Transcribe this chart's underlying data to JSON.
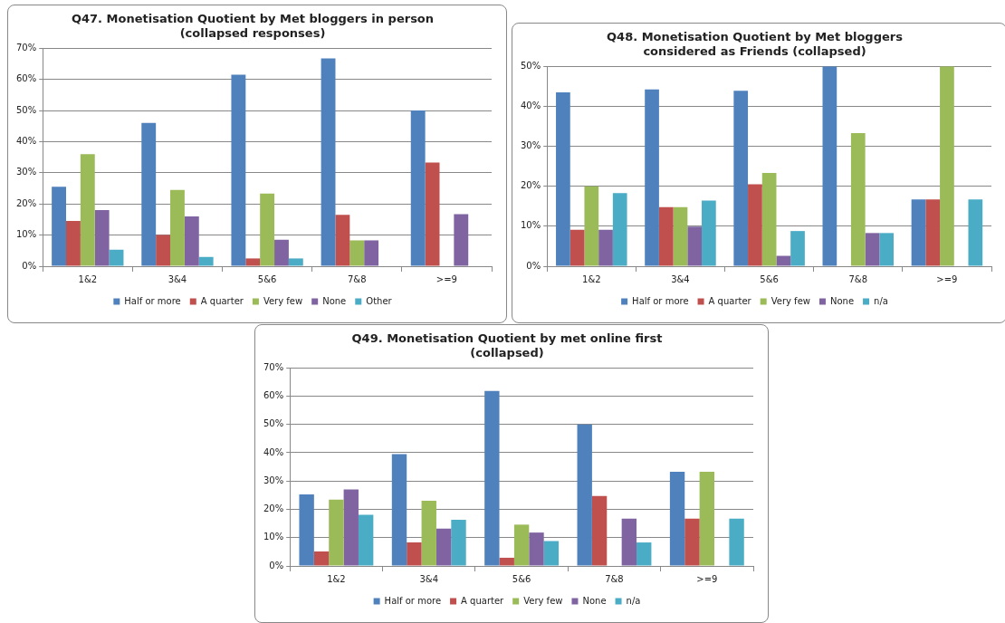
{
  "chart_data": [
    {
      "type": "bar",
      "title": "Q47. Monetisation Quotient by Met bloggers in person (collapsed responses)",
      "categories": [
        "1&2",
        "3&4",
        "5&6",
        "7&8",
        ">=9"
      ],
      "series": [
        {
          "name": "Half or more",
          "color": "#4f81bd",
          "values": [
            25.5,
            46,
            61.5,
            66.7,
            50
          ]
        },
        {
          "name": "A quarter",
          "color": "#c0504d",
          "values": [
            14.5,
            10,
            2.5,
            16.5,
            33.3
          ]
        },
        {
          "name": "Very few",
          "color": "#9bbb59",
          "values": [
            36,
            24.5,
            23.3,
            8.3,
            0
          ]
        },
        {
          "name": "None",
          "color": "#8064a2",
          "values": [
            18,
            16,
            8.5,
            8.3,
            16.7
          ]
        },
        {
          "name": "Other",
          "color": "#4bacc6",
          "values": [
            5.3,
            3,
            2.5,
            0,
            0
          ]
        }
      ],
      "ylim": [
        0,
        70
      ],
      "yticks": [
        {
          "value": 0,
          "label": "0%"
        },
        {
          "value": 10,
          "label": "10%"
        },
        {
          "value": 20,
          "label": "20%"
        },
        {
          "value": 30,
          "label": "30%"
        },
        {
          "value": 40,
          "label": "40%"
        },
        {
          "value": 50,
          "label": "50%"
        },
        {
          "value": 60,
          "label": "60%"
        },
        {
          "value": 70,
          "label": "70%"
        }
      ],
      "grid": "y",
      "legend": "bottom"
    },
    {
      "type": "bar",
      "title": "Q48. Monetisation Quotient by Met bloggers considered as Friends (collapsed)",
      "categories": [
        "1&2",
        "3&4",
        "5&6",
        "7&8",
        ">=9"
      ],
      "series": [
        {
          "name": "Half or more",
          "color": "#4f81bd",
          "values": [
            43.5,
            44.2,
            43.9,
            50,
            16.7
          ]
        },
        {
          "name": "A quarter",
          "color": "#c0504d",
          "values": [
            9.1,
            14.8,
            20.5,
            0,
            16.7
          ]
        },
        {
          "name": "Very few",
          "color": "#9bbb59",
          "values": [
            20,
            14.8,
            23.3,
            33.3,
            50
          ]
        },
        {
          "name": "None",
          "color": "#8064a2",
          "values": [
            9.1,
            9.9,
            2.6,
            8.3,
            0
          ]
        },
        {
          "name": "n/a",
          "color": "#4bacc6",
          "values": [
            18.3,
            16.4,
            8.8,
            8.3,
            16.7
          ]
        }
      ],
      "ylim": [
        0,
        50
      ],
      "yticks": [
        {
          "value": 0,
          "label": "0%"
        },
        {
          "value": 10,
          "label": "10%"
        },
        {
          "value": 20,
          "label": "20%"
        },
        {
          "value": 30,
          "label": "30%"
        },
        {
          "value": 40,
          "label": "40%"
        },
        {
          "value": 50,
          "label": "50%"
        }
      ],
      "grid": "y",
      "legend": "bottom"
    },
    {
      "type": "bar",
      "title": "Q49. Monetisation Quotient by met online first (collapsed)",
      "categories": [
        "1&2",
        "3&4",
        "5&6",
        "7&8",
        ">=9"
      ],
      "series": [
        {
          "name": "Half or more",
          "color": "#4f81bd",
          "values": [
            25.3,
            39.5,
            61.8,
            50,
            33.3
          ]
        },
        {
          "name": "A quarter",
          "color": "#c0504d",
          "values": [
            5.1,
            8.3,
            2.9,
            24.7,
            16.7
          ]
        },
        {
          "name": "Very few",
          "color": "#9bbb59",
          "values": [
            23.4,
            23,
            14.6,
            0,
            33.3
          ]
        },
        {
          "name": "None",
          "color": "#8064a2",
          "values": [
            27,
            13.2,
            11.8,
            16.7,
            0
          ]
        },
        {
          "name": "n/a",
          "color": "#4bacc6",
          "values": [
            18.1,
            16.3,
            8.8,
            8.3,
            16.7
          ]
        }
      ],
      "ylim": [
        0,
        70
      ],
      "yticks": [
        {
          "value": 0,
          "label": "0%"
        },
        {
          "value": 10,
          "label": "10%"
        },
        {
          "value": 20,
          "label": "20%"
        },
        {
          "value": 30,
          "label": "30%"
        },
        {
          "value": 40,
          "label": "40%"
        },
        {
          "value": 50,
          "label": "50%"
        },
        {
          "value": 60,
          "label": "60%"
        },
        {
          "value": 70,
          "label": "70%"
        }
      ],
      "grid": "y",
      "legend": "bottom"
    }
  ]
}
